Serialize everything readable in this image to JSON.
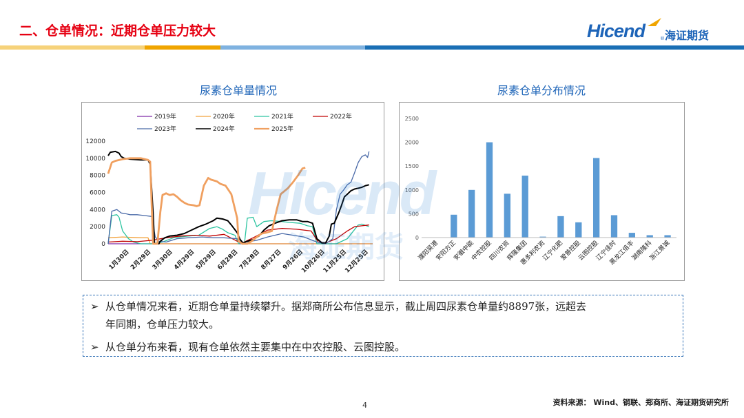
{
  "header": {
    "title": "二、仓单情况：近期仓单压力较大",
    "logo_en": "Hicend",
    "logo_reg": "®",
    "logo_cn": "海证期货"
  },
  "watermark": {
    "en": "Hicend",
    "cn": "海证期货"
  },
  "colors": {
    "accent": "#e60012",
    "brand_blue": "#1d64b8",
    "stripe_yellow": "#f0a500",
    "stripe_blue": "#1a6fb5",
    "bar_blue": "#5b9bd5"
  },
  "left_panel": {
    "title": "尿素仓单量情况"
  },
  "right_panel": {
    "title": "尿素仓单分布情况"
  },
  "chart_data": [
    {
      "type": "line",
      "x_ticks": [
        "1月30日",
        "2月29日",
        "3月30日",
        "4月29日",
        "5月29日",
        "6月28日",
        "7月28日",
        "8月27日",
        "9月26日",
        "10月26日",
        "11月25日",
        "12月25日"
      ],
      "x_range_days": [
        0,
        365
      ],
      "x_tick_days": [
        29,
        59,
        89,
        119,
        149,
        179,
        209,
        239,
        269,
        299,
        329,
        359
      ],
      "y_ticks": [
        0,
        2000,
        4000,
        6000,
        8000,
        10000,
        12000
      ],
      "ylim": [
        0,
        12000
      ],
      "legend_position": "top",
      "series": [
        {
          "name": "2019年",
          "color": "#7f2aa6",
          "width": 1.3,
          "points": [
            [
              0,
              0
            ],
            [
              365,
              0
            ]
          ]
        },
        {
          "name": "2020年",
          "color": "#f2a23c",
          "width": 1.3,
          "points": [
            [
              0,
              700
            ],
            [
              20,
              800
            ],
            [
              30,
              750
            ],
            [
              45,
              700
            ],
            [
              55,
              700
            ],
            [
              58,
              0
            ],
            [
              120,
              0
            ],
            [
              150,
              0
            ],
            [
              365,
              0
            ]
          ]
        },
        {
          "name": "2021年",
          "color": "#2cc4a0",
          "width": 1.3,
          "points": [
            [
              0,
              0
            ],
            [
              5,
              3300
            ],
            [
              12,
              3400
            ],
            [
              15,
              3100
            ],
            [
              20,
              1500
            ],
            [
              28,
              600
            ],
            [
              35,
              200
            ],
            [
              45,
              0
            ],
            [
              60,
              0
            ],
            [
              75,
              200
            ],
            [
              90,
              700
            ],
            [
              110,
              900
            ],
            [
              125,
              1000
            ],
            [
              140,
              1800
            ],
            [
              150,
              2000
            ],
            [
              158,
              1700
            ],
            [
              165,
              1300
            ],
            [
              175,
              1000
            ],
            [
              180,
              0
            ],
            [
              188,
              0
            ],
            [
              192,
              3000
            ],
            [
              200,
              3100
            ],
            [
              205,
              2000
            ],
            [
              215,
              2600
            ],
            [
              225,
              2700
            ],
            [
              240,
              2600
            ],
            [
              250,
              2500
            ],
            [
              265,
              2400
            ],
            [
              275,
              2100
            ],
            [
              282,
              2000
            ],
            [
              288,
              0
            ],
            [
              300,
              0
            ],
            [
              315,
              0
            ],
            [
              330,
              600
            ],
            [
              345,
              2200
            ],
            [
              350,
              2300
            ],
            [
              360,
              2000
            ]
          ]
        },
        {
          "name": "2022年",
          "color": "#c00000",
          "width": 1.3,
          "points": [
            [
              0,
              200
            ],
            [
              20,
              300
            ],
            [
              40,
              250
            ],
            [
              60,
              400
            ],
            [
              80,
              700
            ],
            [
              100,
              900
            ],
            [
              120,
              1000
            ],
            [
              140,
              900
            ],
            [
              160,
              1100
            ],
            [
              178,
              300
            ],
            [
              185,
              100
            ],
            [
              200,
              700
            ],
            [
              220,
              1600
            ],
            [
              240,
              1800
            ],
            [
              260,
              1700
            ],
            [
              280,
              1500
            ],
            [
              290,
              200
            ],
            [
              300,
              100
            ],
            [
              315,
              600
            ],
            [
              330,
              1500
            ],
            [
              340,
              2000
            ],
            [
              350,
              2100
            ],
            [
              360,
              2200
            ]
          ]
        },
        {
          "name": "2023年",
          "color": "#4a6aa8",
          "width": 1.3,
          "points": [
            [
              0,
              0
            ],
            [
              5,
              3800
            ],
            [
              12,
              4000
            ],
            [
              18,
              3600
            ],
            [
              25,
              3500
            ],
            [
              30,
              3400
            ],
            [
              40,
              3400
            ],
            [
              50,
              3300
            ],
            [
              60,
              3200
            ],
            [
              65,
              800
            ],
            [
              70,
              300
            ],
            [
              80,
              200
            ],
            [
              95,
              600
            ],
            [
              110,
              700
            ],
            [
              130,
              800
            ],
            [
              145,
              700
            ],
            [
              160,
              700
            ],
            [
              178,
              600
            ],
            [
              182,
              0
            ],
            [
              190,
              200
            ],
            [
              205,
              400
            ],
            [
              220,
              800
            ],
            [
              240,
              1200
            ],
            [
              255,
              1000
            ],
            [
              270,
              800
            ],
            [
              288,
              200
            ],
            [
              300,
              0
            ],
            [
              310,
              600
            ],
            [
              315,
              4000
            ],
            [
              320,
              5800
            ],
            [
              325,
              6300
            ],
            [
              330,
              6900
            ],
            [
              335,
              7200
            ],
            [
              340,
              8300
            ],
            [
              345,
              9500
            ],
            [
              350,
              10200
            ],
            [
              355,
              10400
            ],
            [
              358,
              10100
            ],
            [
              360,
              10800
            ]
          ]
        },
        {
          "name": "2024年",
          "color": "#000000",
          "width": 2.0,
          "points": [
            [
              0,
              10300
            ],
            [
              3,
              10700
            ],
            [
              10,
              10800
            ],
            [
              15,
              10600
            ],
            [
              18,
              10200
            ],
            [
              22,
              10000
            ],
            [
              30,
              9900
            ],
            [
              45,
              9800
            ],
            [
              55,
              9800
            ],
            [
              58,
              9300
            ],
            [
              62,
              3700
            ],
            [
              64,
              0
            ],
            [
              70,
              0
            ],
            [
              72,
              300
            ],
            [
              78,
              700
            ],
            [
              85,
              900
            ],
            [
              95,
              1000
            ],
            [
              105,
              1200
            ],
            [
              115,
              1600
            ],
            [
              125,
              2000
            ],
            [
              135,
              2300
            ],
            [
              145,
              2700
            ],
            [
              150,
              3000
            ],
            [
              158,
              2900
            ],
            [
              165,
              2700
            ],
            [
              170,
              2200
            ],
            [
              178,
              1300
            ],
            [
              182,
              500
            ],
            [
              186,
              100
            ],
            [
              192,
              300
            ],
            [
              200,
              500
            ],
            [
              208,
              900
            ],
            [
              215,
              1600
            ],
            [
              222,
              2100
            ],
            [
              230,
              2400
            ],
            [
              240,
              2700
            ],
            [
              250,
              2800
            ],
            [
              260,
              2800
            ],
            [
              268,
              2600
            ],
            [
              275,
              2600
            ],
            [
              282,
              2400
            ],
            [
              288,
              600
            ],
            [
              295,
              100
            ],
            [
              300,
              100
            ],
            [
              305,
              900
            ],
            [
              308,
              2300
            ],
            [
              312,
              2400
            ],
            [
              318,
              3600
            ],
            [
              322,
              4500
            ],
            [
              326,
              5500
            ],
            [
              330,
              5800
            ],
            [
              335,
              6200
            ],
            [
              340,
              6400
            ],
            [
              345,
              6500
            ],
            [
              350,
              6600
            ],
            [
              355,
              6800
            ],
            [
              360,
              6900
            ]
          ]
        },
        {
          "name": "2025年",
          "color": "#f0a060",
          "width": 2.8,
          "points": [
            [
              0,
              8200
            ],
            [
              5,
              9500
            ],
            [
              10,
              9700
            ],
            [
              20,
              9900
            ],
            [
              30,
              10000
            ],
            [
              45,
              10000
            ],
            [
              55,
              9800
            ],
            [
              58,
              9600
            ],
            [
              62,
              0
            ],
            [
              68,
              0
            ],
            [
              72,
              3700
            ],
            [
              75,
              5700
            ],
            [
              80,
              5900
            ],
            [
              85,
              5700
            ],
            [
              90,
              5800
            ],
            [
              95,
              5500
            ],
            [
              100,
              5100
            ],
            [
              105,
              4800
            ],
            [
              110,
              4600
            ],
            [
              118,
              4500
            ],
            [
              122,
              4400
            ],
            [
              126,
              4500
            ],
            [
              132,
              6800
            ],
            [
              138,
              7700
            ],
            [
              142,
              7500
            ],
            [
              150,
              7300
            ],
            [
              155,
              7000
            ],
            [
              162,
              6800
            ],
            [
              170,
              5800
            ],
            [
              178,
              3000
            ],
            [
              180,
              300
            ],
            [
              185,
              0
            ],
            [
              192,
              0
            ],
            [
              198,
              300
            ],
            [
              205,
              800
            ],
            [
              212,
              1200
            ],
            [
              218,
              1300
            ],
            [
              226,
              1500
            ],
            [
              232,
              3800
            ],
            [
              238,
              5800
            ],
            [
              248,
              6500
            ],
            [
              255,
              7200
            ],
            [
              262,
              8000
            ],
            [
              268,
              8800
            ],
            [
              272,
              8900
            ]
          ]
        }
      ]
    },
    {
      "type": "bar",
      "categories": [
        "濮阳吴港",
        "安阳方正",
        "安徽中能",
        "中农控股",
        "四川农资",
        "辉隆集团",
        "惠多利农资",
        "辽宁化肥",
        "爱普控股",
        "云图控股",
        "辽宁佳时",
        "黑龙江倍丰",
        "湖南隆科",
        "浙江景诚"
      ],
      "values": [
        0,
        480,
        1000,
        2000,
        920,
        1300,
        20,
        450,
        320,
        1670,
        470,
        100,
        50,
        50
      ],
      "y_ticks": [
        0,
        500,
        1000,
        1500,
        2000,
        2500
      ],
      "ylim": [
        0,
        2500
      ],
      "bar_color": "#5b9bd5"
    }
  ],
  "bullets": [
    "从仓单情况来看，近期仓单量持续攀升。据郑商所公布信息显示，截止周四尿素仓单量约8897张，远超去",
    "年同期，仓单压力较大。",
    "从仓单分布来看，现有仓单依然主要集中在中农控股、云图控股。"
  ],
  "footer": {
    "page": "4",
    "source": "资料来源： Wind、钢联、郑商所、海证期货研究所"
  }
}
